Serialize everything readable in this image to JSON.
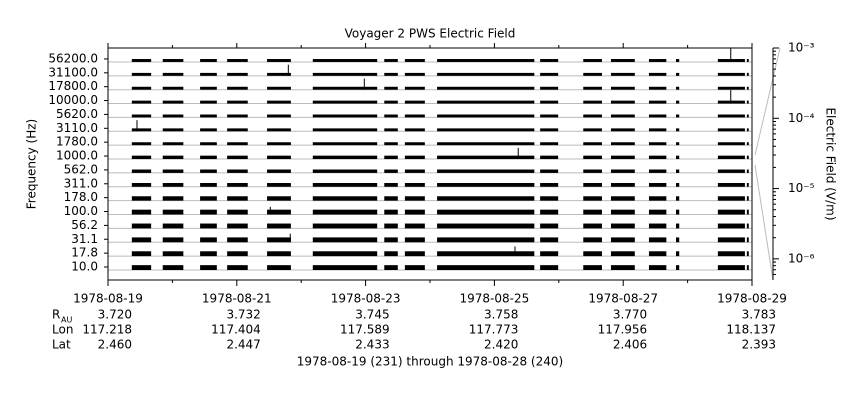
{
  "chart_data": {
    "type": "spectrogram",
    "title": "Voyager 2 PWS Electric Field",
    "ylabel": "Frequency (Hz)",
    "y2label": "Electric Field (V/m)",
    "xlabel": "1978-08-19 (231) through 1978-08-28 (240)",
    "categories": [
      "10.0",
      "17.8",
      "31.1",
      "56.2",
      "100.0",
      "178.0",
      "311.0",
      "562.0",
      "1000.0",
      "1780.0",
      "3110.0",
      "5620.0",
      "10000.0",
      "17800.0",
      "31100.0",
      "56200.0"
    ],
    "values": [
      5e-06,
      5e-06,
      5e-06,
      5e-06,
      5e-06,
      4e-06,
      3e-06,
      2.5e-06,
      2.5e-06,
      2e-06,
      2e-06,
      2e-06,
      2e-06,
      2e-06,
      2e-06,
      2e-06
    ],
    "segments": [
      [
        231.37,
        231.67
      ],
      [
        231.85,
        232.17
      ],
      [
        232.43,
        232.69
      ],
      [
        232.85,
        233.17
      ],
      [
        233.47,
        233.84
      ],
      [
        234.18,
        235.18
      ],
      [
        235.29,
        235.5
      ],
      [
        235.61,
        235.92
      ],
      [
        236.11,
        237.62
      ],
      [
        237.71,
        237.99
      ],
      [
        238.38,
        238.67
      ],
      [
        238.81,
        239.18
      ],
      [
        239.4,
        239.67
      ],
      [
        239.82,
        239.87
      ],
      [
        240.47,
        240.89
      ],
      [
        240.92,
        240.95
      ]
    ],
    "spikes": [
      {
        "channel": 15,
        "x": 240.67,
        "value": 0.0005
      },
      {
        "channel": 12,
        "x": 240.67,
        "value": 0.0003
      },
      {
        "channel": 13,
        "x": 234.98,
        "value": 0.0001
      },
      {
        "channel": 14,
        "x": 233.8,
        "value": 0.0001
      },
      {
        "channel": 10,
        "x": 231.45,
        "value": 0.0001
      },
      {
        "channel": 8,
        "x": 237.37,
        "value": 0.0001
      },
      {
        "channel": 4,
        "x": 233.52,
        "value": 2e-05
      },
      {
        "channel": 1,
        "x": 237.32,
        "value": 5e-05
      },
      {
        "channel": 2,
        "x": 233.83,
        "value": 3e-05
      }
    ],
    "xlim": [
      231,
      241
    ],
    "xticks": [
      {
        "value": 231,
        "label": "1978-08-19"
      },
      {
        "value": 233,
        "label": "1978-08-21"
      },
      {
        "value": 235,
        "label": "1978-08-23"
      },
      {
        "value": 237,
        "label": "1978-08-25"
      },
      {
        "value": 239,
        "label": "1978-08-27"
      },
      {
        "value": 241,
        "label": "1978-08-29"
      }
    ],
    "xminorticks": [
      232,
      234,
      236,
      238,
      240
    ],
    "y2lim": [
      5e-07,
      0.001
    ],
    "y2ticks": [
      {
        "value": 0.001,
        "label": "10⁻³"
      },
      {
        "value": 0.0001,
        "label": "10⁻⁴"
      },
      {
        "value": 1e-05,
        "label": "10⁻⁵"
      },
      {
        "value": 1e-06,
        "label": "10⁻⁶"
      }
    ],
    "y2log": true,
    "color": "#000000",
    "ephemeris": [
      {
        "label": "R",
        "sub": "AU",
        "values": [
          3.72,
          3.732,
          3.745,
          3.758,
          3.77,
          3.783
        ],
        "value_labels": [
          "3.720",
          "3.732",
          "3.745",
          "3.758",
          "3.770",
          "3.783"
        ]
      },
      {
        "label": "Lon",
        "values": [
          117.218,
          117.404,
          117.589,
          117.773,
          117.956,
          118.137
        ],
        "value_labels": [
          "117.218",
          "117.404",
          "117.589",
          "117.773",
          "117.956",
          "118.137"
        ]
      },
      {
        "label": "Lat",
        "values": [
          2.46,
          2.447,
          2.433,
          2.42,
          2.406,
          2.393
        ],
        "value_labels": [
          "2.460",
          "2.447",
          "2.433",
          "2.420",
          "2.406",
          "2.393"
        ]
      }
    ]
  }
}
